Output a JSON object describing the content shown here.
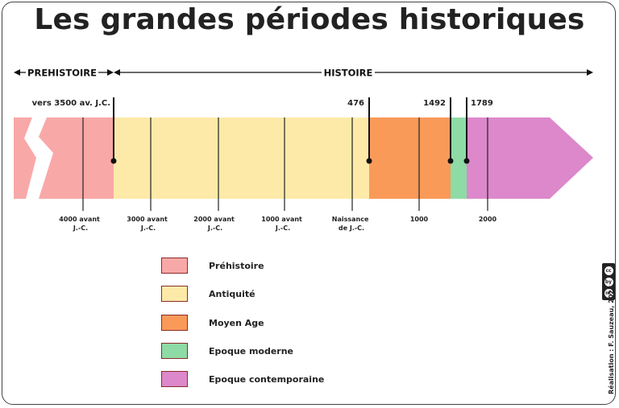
{
  "title": "Les grandes périodes historiques",
  "top_labels": {
    "prehistoire": "PREHISTOIRE",
    "histoire": "HISTOIRE"
  },
  "events": [
    {
      "label": "vers 3500 av. J.C."
    },
    {
      "label": "476"
    },
    {
      "label": "1492"
    },
    {
      "label": "1789"
    }
  ],
  "axis_ticks": [
    {
      "line1": "4000 avant",
      "line2": "J.-C."
    },
    {
      "line1": "3000 avant",
      "line2": "J.-C."
    },
    {
      "line1": "2000 avant",
      "line2": "J.-C."
    },
    {
      "line1": "1000 avant",
      "line2": "J.-C."
    },
    {
      "line1": "Naissance",
      "line2": "de J.-C."
    },
    {
      "line1": "1000",
      "line2": ""
    },
    {
      "line1": "2000",
      "line2": ""
    }
  ],
  "legend": [
    {
      "label": "Préhistoire",
      "color": "#F9A8A8"
    },
    {
      "label": "Antiquité",
      "color": "#FDEAA8"
    },
    {
      "label": "Moyen Age",
      "color": "#F99A59"
    },
    {
      "label": "Epoque moderne",
      "color": "#8EDBA6"
    },
    {
      "label": "Epoque contemporaine",
      "color": "#DC88CB"
    }
  ],
  "credit": "Réalisation : F. Sauzeau, 2023",
  "license_icons": [
    "cc",
    "by",
    "nc",
    "sa"
  ]
}
